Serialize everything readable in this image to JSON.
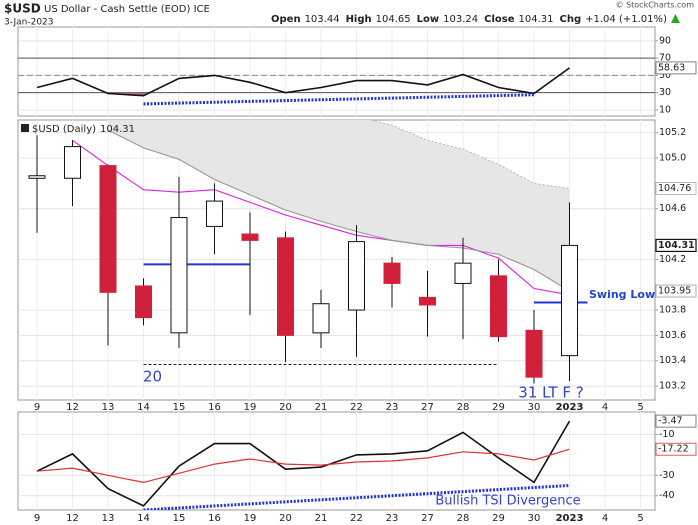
{
  "header": {
    "symbol": "$USD",
    "name": "US Dollar - Cash Settle (EOD) ICE",
    "date": "3-Jan-2023",
    "ohlc": [
      {
        "label": "Open",
        "value": 103.44
      },
      {
        "label": "High",
        "value": 104.65
      },
      {
        "label": "Low",
        "value": 103.24
      },
      {
        "label": "Close",
        "value": 104.31
      }
    ],
    "chg_label": "Chg",
    "chg": "+1.04 (+1.01%)",
    "chg_color": "#22aa22",
    "source": "© StockCharts.com"
  },
  "chart_data": [
    {
      "type": "line",
      "ylim": [
        3,
        106
      ],
      "yticks": [
        10,
        30,
        50,
        70,
        90
      ],
      "levels": [
        {
          "value": 70,
          "style": "solid"
        },
        {
          "value": 50,
          "style": "dashed"
        },
        {
          "value": 30,
          "style": "solid"
        }
      ],
      "series": [
        {
          "color": "#111111",
          "values": [
            36,
            46.5,
            29,
            26.5,
            46.5,
            50,
            42,
            30,
            36,
            44,
            44,
            39,
            51,
            36,
            29,
            58.63,
            null,
            null
          ],
          "label_last": true
        }
      ],
      "oversold_fill": "#b06070",
      "trendlines": [
        {
          "x": [
            "14",
            "30"
          ],
          "values": [
            17,
            27.6
          ],
          "color": "#2233dd"
        }
      ]
    },
    {
      "type": "candlestick",
      "legend": "$USD (Daily)",
      "categories": [
        "9",
        "12",
        "13",
        "14",
        "15",
        "16",
        "19",
        "20",
        "21",
        "22",
        "23",
        "27",
        "28",
        "29",
        "30",
        "2023",
        "4",
        "5"
      ],
      "open": [
        104.84,
        104.84,
        104.94,
        103.99,
        103.62,
        104.46,
        104.4,
        104.37,
        103.62,
        103.8,
        104.17,
        103.9,
        104.01,
        104.07,
        103.64,
        103.44,
        null,
        null
      ],
      "high": [
        105.18,
        105.14,
        104.95,
        104.05,
        104.85,
        104.8,
        104.57,
        104.42,
        103.96,
        104.47,
        104.22,
        104.11,
        104.37,
        104.2,
        103.8,
        104.65,
        null,
        null
      ],
      "low": [
        104.41,
        104.62,
        103.52,
        103.68,
        103.5,
        104.24,
        103.76,
        103.39,
        103.5,
        103.43,
        103.82,
        103.59,
        103.57,
        103.55,
        103.22,
        103.24,
        null,
        null
      ],
      "close": [
        104.86,
        105.09,
        103.94,
        103.74,
        104.53,
        104.66,
        104.35,
        103.6,
        103.85,
        104.34,
        104.01,
        103.84,
        104.17,
        103.59,
        103.27,
        104.31,
        null,
        null
      ],
      "up_color": "#ffffff",
      "down_color": "#d0203a",
      "ylim": [
        103.09,
        105.3
      ],
      "yticks": [
        103.2,
        103.4,
        103.6,
        103.8,
        104.2,
        104.6,
        {
          "value": 105,
          "label": "105.0"
        },
        105.2
      ],
      "overlays": [
        {
          "color": "#e020e0",
          "values": [
            null,
            105.14,
            104.94,
            104.75,
            104.73,
            104.75,
            104.65,
            104.55,
            104.47,
            104.39,
            104.35,
            104.31,
            104.31,
            104.21,
            103.97,
            103.92,
            null,
            null
          ]
        },
        {
          "color": "#999999",
          "values": [
            null,
            null,
            105.22,
            105.08,
            104.99,
            104.83,
            104.71,
            104.59,
            104.5,
            104.42,
            104.35,
            104.31,
            104.29,
            104.24,
            104.12,
            103.95,
            null,
            null
          ],
          "label_last": true
        },
        {
          "color": "#aaaaaa",
          "dashed": true,
          "values": [
            null,
            null,
            105.35,
            105.35,
            105.35,
            105.35,
            105.35,
            105.35,
            105.35,
            105.33,
            105.26,
            105.14,
            105.07,
            104.95,
            104.8,
            104.76,
            null,
            null
          ],
          "label_last": true
        }
      ],
      "band_fill": "#e6e6e6",
      "levels": [
        {
          "x": [
            "14",
            "19"
          ],
          "value": 104.16,
          "color": "#2233dd",
          "style": "solid"
        },
        {
          "x": [
            "30",
            "2023"
          ],
          "value": 103.86,
          "color": "#2233dd",
          "style": "solid"
        },
        {
          "x": [
            "14",
            "29"
          ],
          "value": 103.37,
          "color": "#222222",
          "style": "dashed"
        }
      ],
      "annotations": [
        "20",
        "31 LT F ?",
        "Swing Low"
      ]
    },
    {
      "type": "line",
      "categories": [
        "9",
        "12",
        "13",
        "14",
        "15",
        "16",
        "19",
        "20",
        "21",
        "22",
        "23",
        "27",
        "28",
        "29",
        "30",
        "2023",
        "4",
        "5"
      ],
      "ylim": [
        -47,
        1
      ],
      "yticks": [
        -40,
        -30,
        -10
      ],
      "series": [
        {
          "color": "#111111",
          "values": [
            -28,
            -19.5,
            -36.5,
            -45,
            -25.5,
            -14.5,
            -14.5,
            -27,
            -26,
            -20,
            -19.5,
            -18,
            -9,
            -21.5,
            -33.5,
            -3.47,
            null,
            null
          ],
          "label_last": true
        },
        {
          "color": "#e03030",
          "values": [
            -28,
            -26.5,
            -30,
            -33.5,
            -29,
            -24.5,
            -22,
            -24.5,
            -25,
            -23.5,
            -23,
            -21.5,
            -18.5,
            -19.5,
            -22.5,
            -17.22,
            null,
            null
          ],
          "label_last": true
        }
      ],
      "trendlines": [
        {
          "x": [
            "14",
            "2023"
          ],
          "values": [
            -47,
            -35
          ],
          "color": "#2233dd"
        }
      ],
      "annotations": [
        "Bullish TSI Divergence"
      ]
    }
  ]
}
